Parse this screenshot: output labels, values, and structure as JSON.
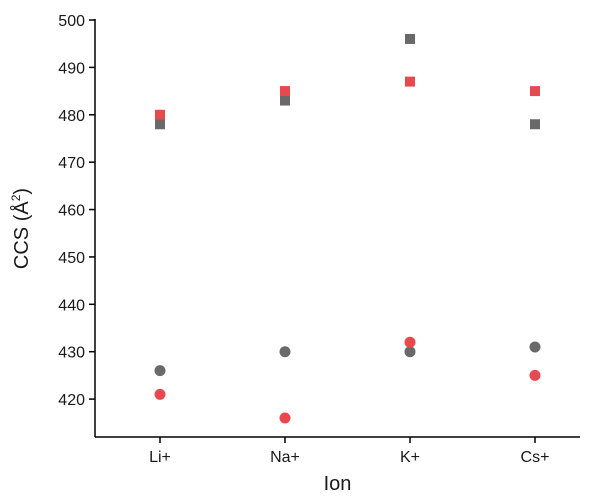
{
  "chart_data": {
    "type": "scatter",
    "xlabel": "Ion",
    "ylabel_main": "CCS (Å",
    "ylabel_sup": "2",
    "ylabel_end": ")",
    "categories": [
      "Li+",
      "Na+",
      "K+",
      "Cs+"
    ],
    "ylim": [
      412,
      500
    ],
    "yticks": [
      420,
      430,
      440,
      450,
      460,
      470,
      480,
      490,
      500
    ],
    "grid": false,
    "legend": "none",
    "series": [
      {
        "marker": "square",
        "color": "#696969",
        "values": [
          478,
          483,
          496,
          478
        ]
      },
      {
        "marker": "square",
        "color": "#e8494f",
        "values": [
          480,
          485,
          487,
          485
        ]
      },
      {
        "marker": "circle",
        "color": "#696969",
        "values": [
          426,
          430,
          430,
          431
        ]
      },
      {
        "marker": "circle",
        "color": "#e8494f",
        "values": [
          421,
          416,
          432,
          425
        ]
      }
    ]
  }
}
